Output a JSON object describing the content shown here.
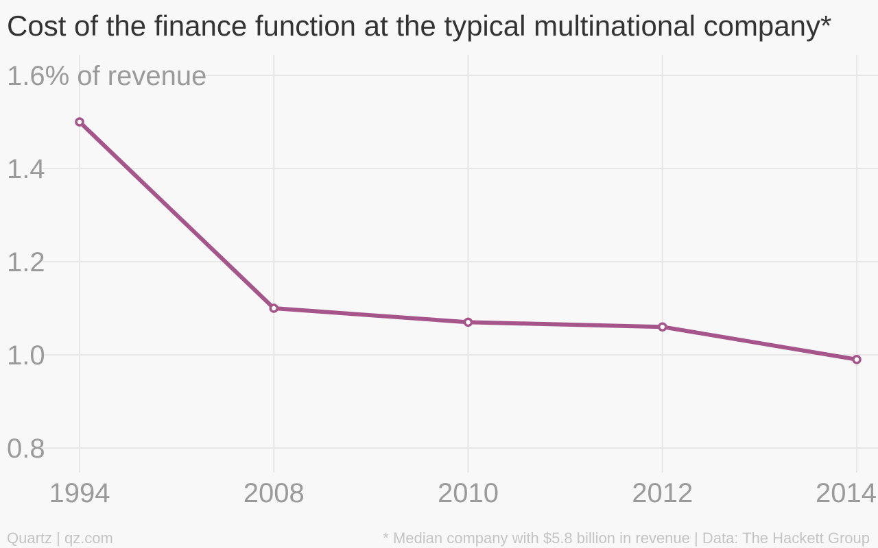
{
  "chart_data": {
    "type": "line",
    "title": "Cost of the finance function at the typical multinational company*",
    "x": [
      "1994",
      "2008",
      "2010",
      "2012",
      "2014"
    ],
    "series": [
      {
        "values": [
          1.5,
          1.1,
          1.07,
          1.06,
          0.99
        ]
      }
    ],
    "ylim": [
      0.8,
      1.6
    ],
    "yticks": [
      0.8,
      1.0,
      1.2,
      1.4,
      1.6
    ],
    "ytick_labels": [
      "0.8",
      "1.0",
      "1.2",
      "1.4",
      "1.6% of revenue"
    ],
    "xlabel": "",
    "ylabel": "",
    "grid": true,
    "legend": "none",
    "colors": {
      "series": "#a5558a",
      "grid": "#e6e6e6",
      "background": "#f8f8f8"
    }
  },
  "footer": {
    "source_left": "Quartz | qz.com",
    "source_right": "* Median company with $5.8 billion in revenue | Data: The Hackett Group"
  }
}
